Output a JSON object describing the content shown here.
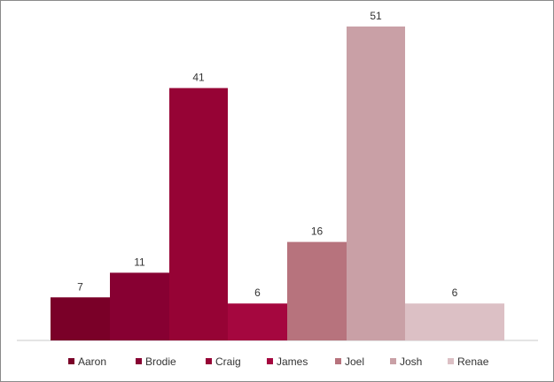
{
  "chart_data": {
    "type": "bar",
    "title": "",
    "xlabel": "",
    "ylabel": "",
    "ylim": [
      0,
      52
    ],
    "grid": false,
    "legend_position": "bottom",
    "series": [
      {
        "name": "Aaron",
        "value": 7,
        "color": "#7a0028"
      },
      {
        "name": "Brodie",
        "value": 11,
        "color": "#870032"
      },
      {
        "name": "Craig",
        "value": 41,
        "color": "#960335"
      },
      {
        "name": "James",
        "value": 6,
        "color": "#a5073f"
      },
      {
        "name": "Joel",
        "value": 16,
        "color": "#b7737d"
      },
      {
        "name": "Josh",
        "value": 51,
        "color": "#c9a0a6"
      },
      {
        "name": "Renae",
        "value": 6,
        "color": "#dcc0c5"
      }
    ]
  }
}
